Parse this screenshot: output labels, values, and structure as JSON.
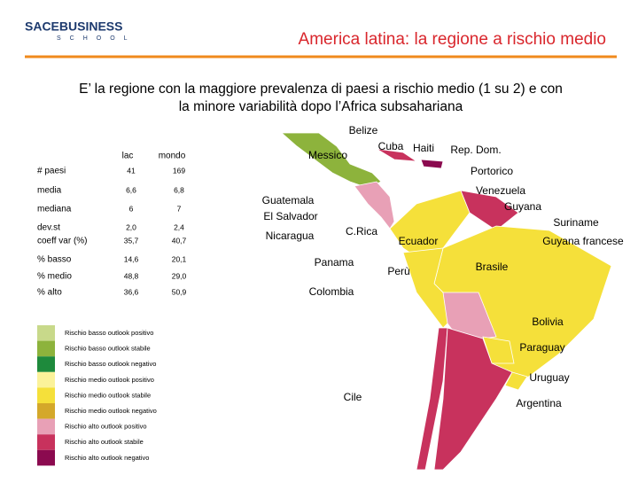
{
  "logo": {
    "name": "SACEBUSINESS",
    "sub": "SCHOOL"
  },
  "title": "America latina: la regione a rischio medio",
  "subtitle": [
    "E’ la regione con la maggiore prevalenza di paesi a rischio medio (1 su 2) e con",
    "la minore variabilità dopo l’Africa subsahariana"
  ],
  "table": {
    "header": [
      "lac",
      "mondo"
    ],
    "rows": [
      [
        "# paesi",
        "41",
        "169"
      ],
      [
        "media",
        "6,6",
        "6,8"
      ],
      [
        "mediana",
        "6",
        "7"
      ],
      [
        "dev.st",
        "2,0",
        "2,4"
      ],
      [
        "coeff var (%)",
        "35,7",
        "40,7"
      ],
      [
        "% basso",
        "14,6",
        "20,1"
      ],
      [
        "% medio",
        "48,8",
        "29,0"
      ],
      [
        "% alto",
        "36,6",
        "50,9"
      ]
    ]
  },
  "legend": [
    {
      "label": "Rischio basso outlook positivo",
      "color": "#c8d98a"
    },
    {
      "label": "Rischio basso outlook stabile",
      "color": "#8db33c"
    },
    {
      "label": "Rischio basso outlook negativo",
      "color": "#1e8a3c"
    },
    {
      "label": "Rischio medio outlook positivo",
      "color": "#fbf29a"
    },
    {
      "label": "Rischio medio outlook stabile",
      "color": "#f5e03a"
    },
    {
      "label": "Rischio medio outlook negativo",
      "color": "#d4a82a"
    },
    {
      "label": "Rischio alto outlook positivo",
      "color": "#e8a0b6"
    },
    {
      "label": "Rischio alto outlook stabile",
      "color": "#c8325d"
    },
    {
      "label": "Rischio alto outlook negativo",
      "color": "#8b0a4f"
    }
  ],
  "map": {
    "labels": [
      "Belize",
      "Cuba",
      "Haiti",
      "Rep. Dom.",
      "Messico",
      "Portorico",
      "Venezuela",
      "Guatemala",
      "Guyana",
      "El Salvador",
      "Suriname",
      "Nicaragua",
      "C.Rica",
      "Ecuador",
      "Guyana francese",
      "Panama",
      "Brasile",
      "Perù",
      "Colombia",
      "Bolivia",
      "Paraguay",
      "Uruguay",
      "Cile",
      "Argentina"
    ]
  }
}
